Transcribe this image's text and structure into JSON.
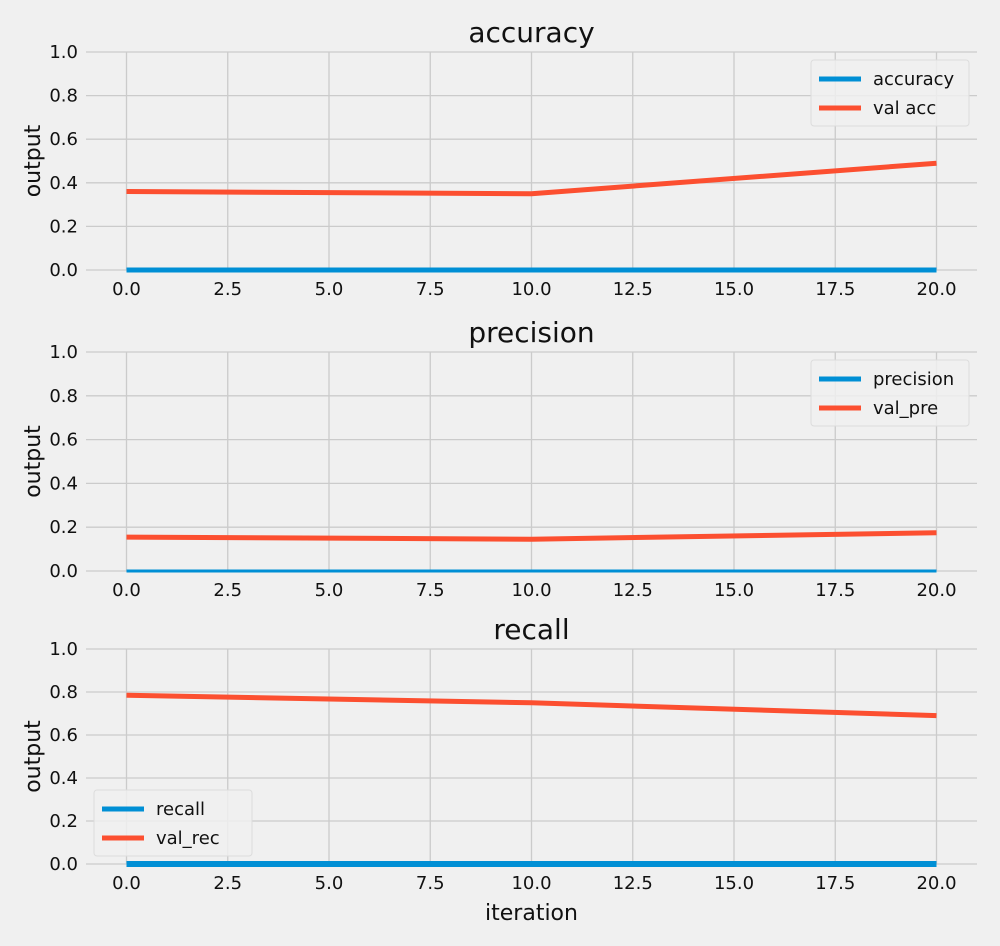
{
  "chart_data": [
    {
      "type": "line",
      "title": "accuracy",
      "xlabel": "",
      "ylabel": "output",
      "xlim": [
        -1,
        21
      ],
      "ylim": [
        0,
        1
      ],
      "xticks": [
        0,
        2.5,
        5,
        7.5,
        10,
        12.5,
        15,
        17.5,
        20
      ],
      "xtick_labels": [
        "0.0",
        "2.5",
        "5.0",
        "7.5",
        "10.0",
        "12.5",
        "15.0",
        "17.5",
        "20.0"
      ],
      "yticks": [
        0,
        0.2,
        0.4,
        0.6,
        0.8,
        1.0
      ],
      "ytick_labels": [
        "0.0",
        "0.2",
        "0.4",
        "0.6",
        "0.8",
        "1.0"
      ],
      "legend_position": "top-right",
      "grid": true,
      "series": [
        {
          "name": "accuracy",
          "color": "#008fd5",
          "width": 5,
          "x": [
            0,
            10,
            20
          ],
          "y": [
            0.0,
            0.0,
            0.0
          ]
        },
        {
          "name": "val acc",
          "color": "#fc4f30",
          "width": 5,
          "x": [
            0,
            10,
            20
          ],
          "y": [
            0.36,
            0.35,
            0.49
          ]
        }
      ]
    },
    {
      "type": "line",
      "title": "precision",
      "xlabel": "",
      "ylabel": "output",
      "xlim": [
        -1,
        21
      ],
      "ylim": [
        0,
        1
      ],
      "xticks": [
        0,
        2.5,
        5,
        7.5,
        10,
        12.5,
        15,
        17.5,
        20
      ],
      "xtick_labels": [
        "0.0",
        "2.5",
        "5.0",
        "7.5",
        "10.0",
        "12.5",
        "15.0",
        "17.5",
        "20.0"
      ],
      "yticks": [
        0,
        0.2,
        0.4,
        0.6,
        0.8,
        1.0
      ],
      "ytick_labels": [
        "0.0",
        "0.2",
        "0.4",
        "0.6",
        "0.8",
        "1.0"
      ],
      "legend_position": "top-right",
      "grid": true,
      "series": [
        {
          "name": "precision",
          "color": "#008fd5",
          "width": 3,
          "x": [
            0,
            10,
            20
          ],
          "y": [
            0.0,
            0.0,
            0.0
          ]
        },
        {
          "name": "val_pre",
          "color": "#fc4f30",
          "width": 5,
          "x": [
            0,
            10,
            20
          ],
          "y": [
            0.155,
            0.145,
            0.175
          ]
        }
      ]
    },
    {
      "type": "line",
      "title": "recall",
      "xlabel": "iteration",
      "ylabel": "output",
      "xlim": [
        -1,
        21
      ],
      "ylim": [
        0,
        1
      ],
      "xticks": [
        0,
        2.5,
        5,
        7.5,
        10,
        12.5,
        15,
        17.5,
        20
      ],
      "xtick_labels": [
        "0.0",
        "2.5",
        "5.0",
        "7.5",
        "10.0",
        "12.5",
        "15.0",
        "17.5",
        "20.0"
      ],
      "yticks": [
        0,
        0.2,
        0.4,
        0.6,
        0.8,
        1.0
      ],
      "ytick_labels": [
        "0.0",
        "0.2",
        "0.4",
        "0.6",
        "0.8",
        "1.0"
      ],
      "legend_position": "bottom-left",
      "grid": true,
      "series": [
        {
          "name": "recall",
          "color": "#008fd5",
          "width": 6,
          "x": [
            0,
            10,
            20
          ],
          "y": [
            0.0,
            0.0,
            0.0
          ]
        },
        {
          "name": "val_rec",
          "color": "#fc4f30",
          "width": 5,
          "x": [
            0,
            10,
            20
          ],
          "y": [
            0.785,
            0.75,
            0.69
          ]
        }
      ]
    }
  ]
}
